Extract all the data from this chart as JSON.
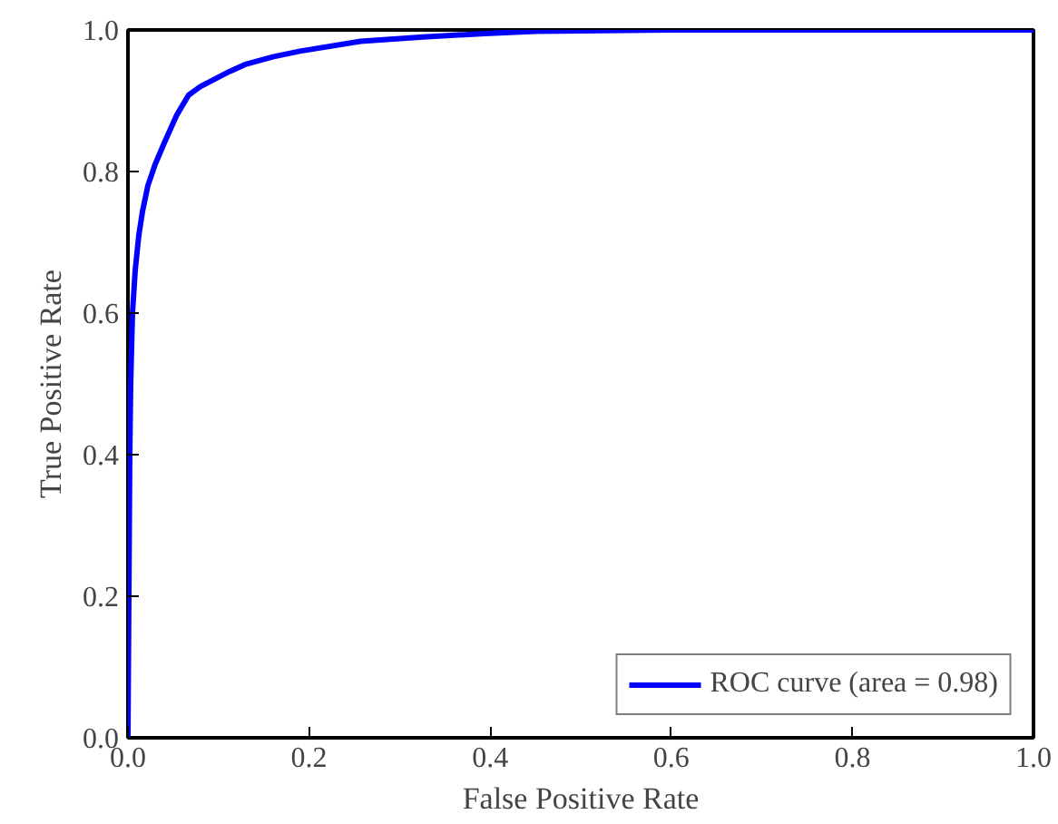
{
  "chart_data": {
    "type": "line",
    "xlabel": "False Positive Rate",
    "ylabel": "True Positive Rate",
    "x": [
      0,
      0.001,
      0.002,
      0.003,
      0.005,
      0.008,
      0.012,
      0.016,
      0.022,
      0.03,
      0.04,
      0.054,
      0.067,
      0.08,
      0.095,
      0.11,
      0.129,
      0.16,
      0.19,
      0.257,
      0.326,
      0.394,
      0.45,
      0.6,
      0.8,
      1.0
    ],
    "series": [
      {
        "name": "ROC curve (area = 0.98)",
        "color": "#0000ff",
        "values": [
          0,
          0.2,
          0.4,
          0.5,
          0.6,
          0.66,
          0.71,
          0.743,
          0.78,
          0.81,
          0.84,
          0.88,
          0.908,
          0.92,
          0.93,
          0.94,
          0.951,
          0.962,
          0.97,
          0.984,
          0.99,
          0.995,
          0.998,
          1.0,
          1.0,
          1.0
        ]
      }
    ],
    "xlim": [
      0,
      1
    ],
    "ylim": [
      0,
      1
    ],
    "xticks": [
      {
        "value": 0,
        "label": "0.0"
      },
      0.2,
      0.4,
      0.6,
      0.8,
      {
        "value": 1,
        "label": "1.0"
      }
    ],
    "yticks": [
      {
        "value": 0,
        "label": "0.0"
      },
      0.2,
      0.4,
      0.6,
      0.8,
      {
        "value": 1,
        "label": "1.0"
      }
    ],
    "grid": false,
    "legend": "bottom right",
    "line_style": "solid",
    "marker": "none"
  }
}
